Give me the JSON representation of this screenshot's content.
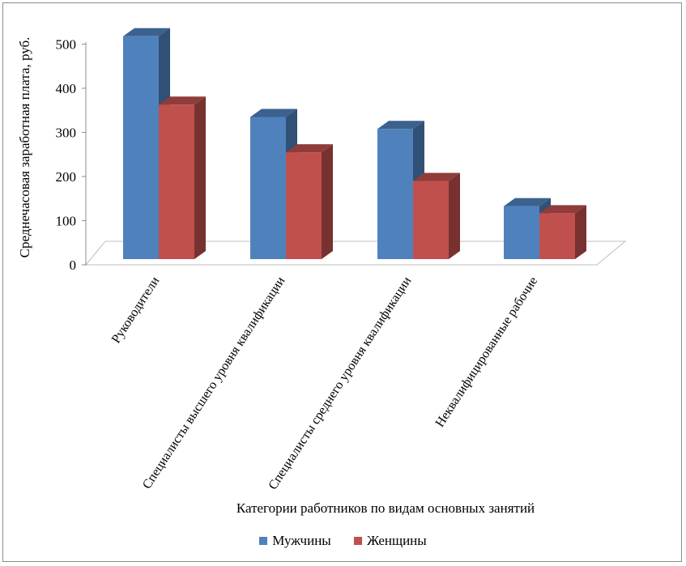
{
  "chart_data": {
    "type": "bar",
    "title": "",
    "xlabel": "Категории работников по видам основных занятий",
    "ylabel": "Среднечасовая заработная плата, руб.",
    "ylim": [
      0,
      500
    ],
    "yticks": [
      "0",
      "100",
      "200",
      "300",
      "400",
      "500"
    ],
    "categories": [
      "Руководители",
      "Специалисты высшего уровня квалификации",
      "Специалисты среднего уровня квалификации",
      "Неквалифицированные рабочие"
    ],
    "series": [
      {
        "name": "Мужчины",
        "values": [
          505,
          322,
          295,
          120
        ],
        "color": "#4f81bd"
      },
      {
        "name": "Женщины",
        "values": [
          350,
          242,
          177,
          104
        ],
        "color": "#c0504d"
      }
    ],
    "legend_position": "bottom"
  }
}
